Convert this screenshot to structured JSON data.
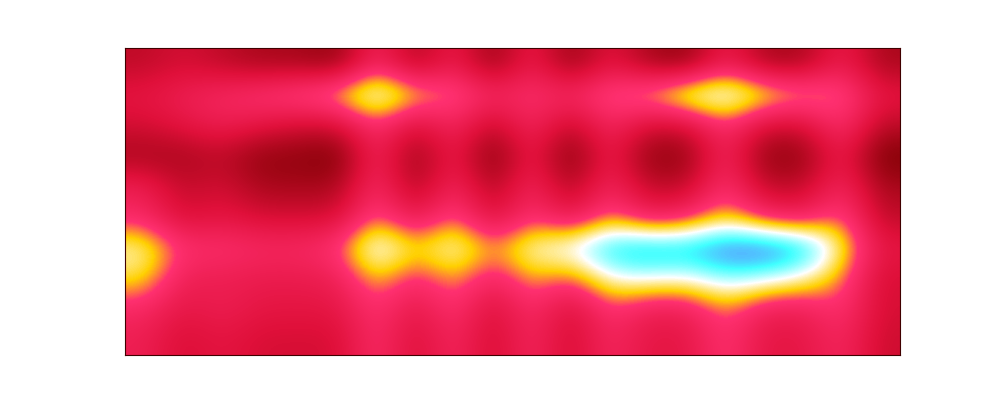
{
  "chart_data": {
    "type": "heatmap",
    "tick_labels": false,
    "cells": [
      [
        25,
        30,
        25,
        20,
        20,
        15,
        45,
        20,
        40,
        15,
        40,
        15,
        35,
        20,
        15,
        40,
        20,
        20,
        40,
        20
      ],
      [
        35,
        40,
        45,
        50,
        55,
        62,
        78,
        62,
        55,
        45,
        48,
        45,
        55,
        60,
        75,
        78,
        68,
        60,
        55,
        35
      ],
      [
        30,
        35,
        40,
        35,
        30,
        30,
        50,
        30,
        45,
        25,
        45,
        25,
        45,
        30,
        30,
        50,
        30,
        30,
        50,
        25
      ],
      [
        20,
        20,
        25,
        15,
        15,
        10,
        45,
        15,
        40,
        10,
        40,
        10,
        40,
        15,
        15,
        45,
        15,
        15,
        40,
        10
      ],
      [
        40,
        25,
        30,
        20,
        20,
        20,
        48,
        20,
        45,
        20,
        45,
        20,
        45,
        25,
        25,
        50,
        25,
        25,
        45,
        20
      ],
      [
        45,
        30,
        35,
        30,
        30,
        30,
        55,
        35,
        55,
        30,
        50,
        35,
        55,
        40,
        45,
        60,
        45,
        40,
        55,
        25
      ],
      [
        68,
        48,
        48,
        45,
        45,
        50,
        78,
        60,
        72,
        55,
        70,
        75,
        88,
        92,
        90,
        96,
        98,
        92,
        65,
        35
      ],
      [
        62,
        40,
        40,
        38,
        38,
        40,
        60,
        45,
        58,
        42,
        58,
        50,
        70,
        72,
        70,
        78,
        75,
        68,
        55,
        30
      ],
      [
        45,
        35,
        40,
        35,
        35,
        35,
        50,
        35,
        50,
        30,
        48,
        30,
        50,
        40,
        40,
        55,
        40,
        40,
        50,
        30
      ],
      [
        40,
        30,
        35,
        30,
        30,
        30,
        48,
        30,
        45,
        28,
        45,
        28,
        45,
        35,
        35,
        50,
        35,
        35,
        45,
        28
      ]
    ]
  }
}
